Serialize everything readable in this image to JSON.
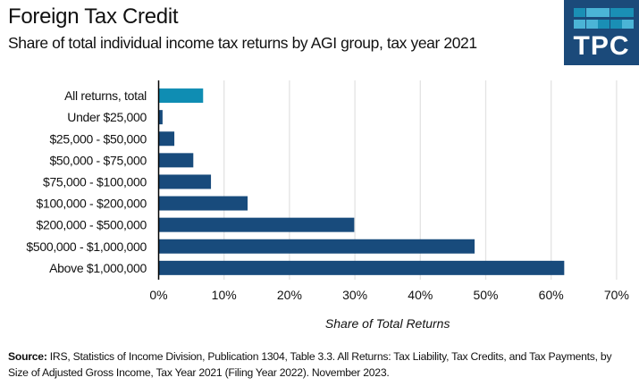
{
  "header": {
    "title": "Foreign Tax Credit",
    "subtitle": "Share of total individual income tax returns by AGI group, tax year 2021"
  },
  "logo": {
    "text": "TPC",
    "background": "#1b4a7a",
    "tile_colors": [
      "#1a8fb5",
      "#4bb4d6",
      "#4bb4d6",
      "#1a8fb5",
      "#1a8fb5",
      "#4bb4d6",
      "#4bb4d6",
      "#1a8fb5",
      "#1a8fb5",
      "#4bb4d6"
    ]
  },
  "chart_data": {
    "type": "bar",
    "orientation": "horizontal",
    "title": "Foreign Tax Credit",
    "subtitle": "Share of total individual income tax returns by AGI group, tax year 2021",
    "xlabel": "Share of Total Returns",
    "ylabel": "",
    "categories": [
      "All returns, total",
      "Under $25,000",
      "$25,000 - $50,000",
      "$50,000 - $75,000",
      "$75,000 - $100,000",
      "$100,000 - $200,000",
      "$200,000 - $500,000",
      "$500,000 - $1,000,000",
      "Above $1,000,000"
    ],
    "values": [
      6.8,
      0.6,
      2.4,
      5.3,
      8.0,
      13.6,
      29.9,
      48.3,
      62.0
    ],
    "unit": "%",
    "xlim": [
      0,
      70
    ],
    "xticks": [
      0,
      10,
      20,
      30,
      40,
      50,
      60,
      70
    ],
    "xtick_labels": [
      "0%",
      "10%",
      "20%",
      "30%",
      "40%",
      "50%",
      "60%",
      "70%"
    ],
    "grid": "vertical",
    "legend": "none",
    "colors": {
      "highlight": "#0f8db3",
      "default": "#184b7c",
      "grid": "#e3e3e3",
      "axis": "#000000"
    },
    "highlight_index": 0
  },
  "source": {
    "label": "Source:",
    "text": " IRS, Statistics of Income Division, Publication 1304, Table 3.3.  All Returns: Tax Liability, Tax Credits, and Tax Payments, by Size of Adjusted Gross Income, Tax Year 2021  (Filing Year 2022). November 2023."
  }
}
